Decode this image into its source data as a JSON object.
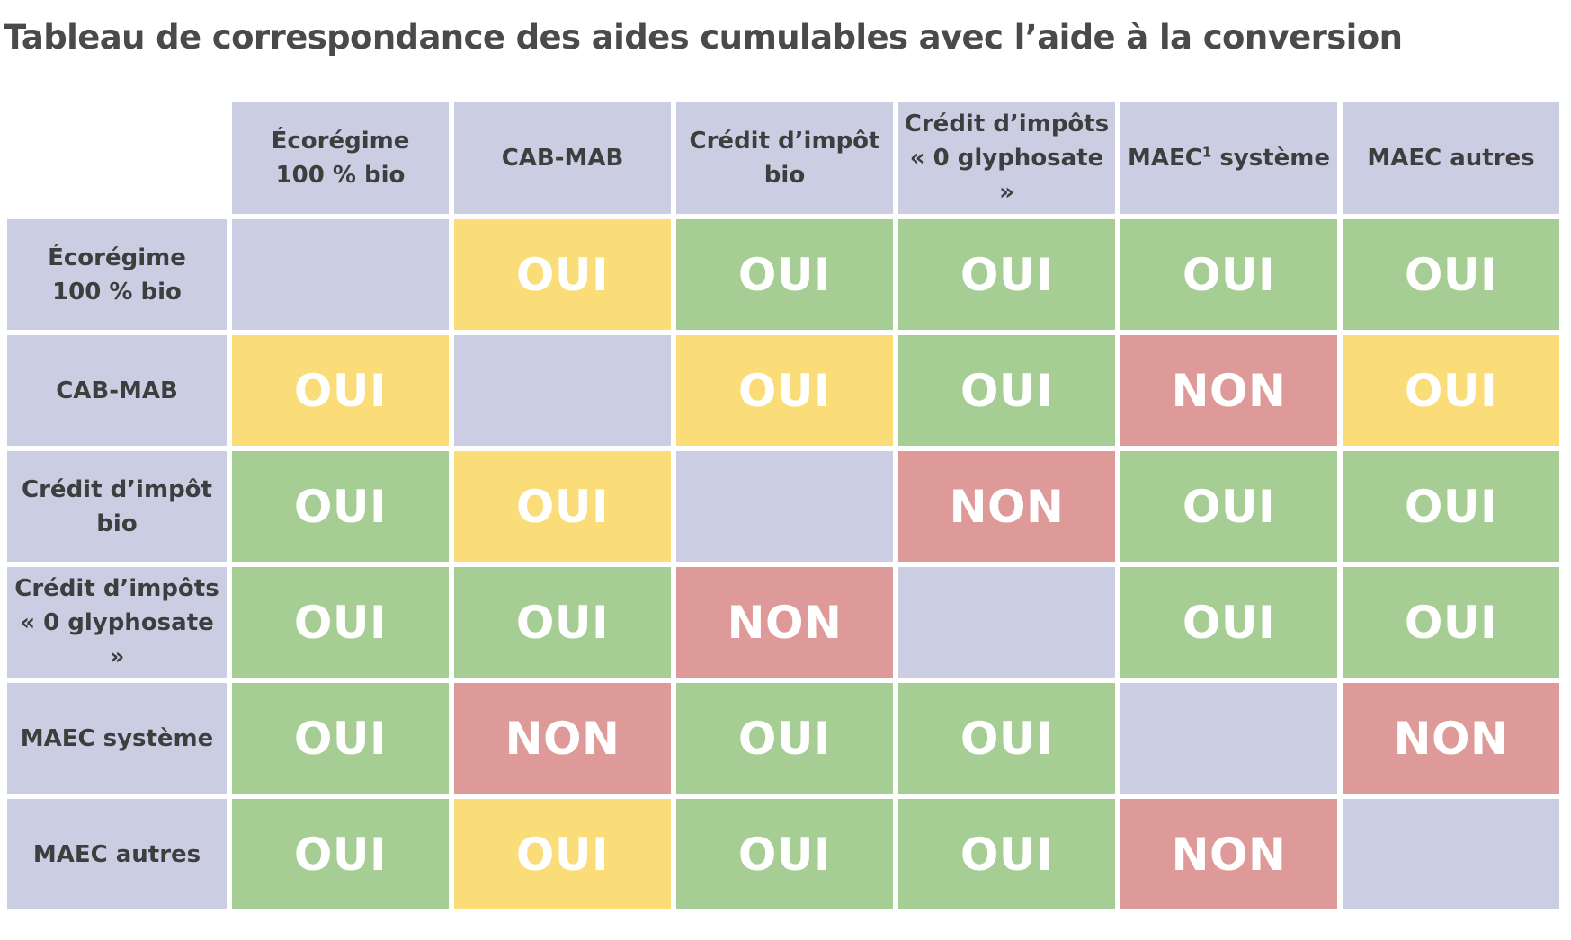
{
  "title": "Tableau de correspondance des aides cumulables avec l’aide à la conversion",
  "footnote_marker": "1",
  "columns": [
    {
      "line1": "Écorégime",
      "line2": "100 % bio"
    },
    {
      "line1": "CAB-MAB",
      "line2": ""
    },
    {
      "line1": "Crédit d’impôt",
      "line2": "bio"
    },
    {
      "line1": "Crédit d’impôts",
      "line2": "« 0 glyphosate »"
    },
    {
      "line1": "MAEC",
      "line2": " système"
    },
    {
      "line1": "MAEC autres",
      "line2": ""
    }
  ],
  "rows": [
    {
      "line1": "Écorégime",
      "line2": "100 % bio"
    },
    {
      "line1": "CAB-MAB",
      "line2": ""
    },
    {
      "line1": "Crédit d’impôt",
      "line2": "bio"
    },
    {
      "line1": "Crédit d’impôts",
      "line2": "« 0 glyphosate »"
    },
    {
      "line1": "MAEC système",
      "line2": ""
    },
    {
      "line1": "MAEC autres",
      "line2": ""
    }
  ],
  "cells": [
    [
      "",
      "OUI",
      "OUI",
      "OUI",
      "OUI",
      "OUI"
    ],
    [
      "OUI",
      "",
      "OUI",
      "OUI",
      "NON",
      "OUI"
    ],
    [
      "OUI",
      "OUI",
      "",
      "NON",
      "OUI",
      "OUI"
    ],
    [
      "OUI",
      "OUI",
      "NON",
      "",
      "OUI",
      "OUI"
    ],
    [
      "OUI",
      "NON",
      "OUI",
      "OUI",
      "",
      "NON"
    ],
    [
      "OUI",
      "OUI",
      "OUI",
      "OUI",
      "NON",
      ""
    ]
  ],
  "cell_status": [
    [
      "empty",
      "oui-yellow",
      "oui-green",
      "oui-green",
      "oui-green",
      "oui-green"
    ],
    [
      "oui-yellow",
      "empty",
      "oui-yellow",
      "oui-green",
      "non",
      "oui-yellow"
    ],
    [
      "oui-green",
      "oui-yellow",
      "empty",
      "non",
      "oui-green",
      "oui-green"
    ],
    [
      "oui-green",
      "oui-green",
      "non",
      "empty",
      "oui-green",
      "oui-green"
    ],
    [
      "oui-green",
      "non",
      "oui-green",
      "oui-green",
      "empty",
      "non"
    ],
    [
      "oui-green",
      "oui-yellow",
      "oui-green",
      "oui-green",
      "non",
      "empty"
    ]
  ],
  "colors": {
    "header_bg": "#cbcde2",
    "oui_green": "#a6cd93",
    "oui_yellow": "#fadd78",
    "non_red": "#de9a98",
    "text_dark": "#3e3e3e",
    "text_white": "#ffffff"
  }
}
